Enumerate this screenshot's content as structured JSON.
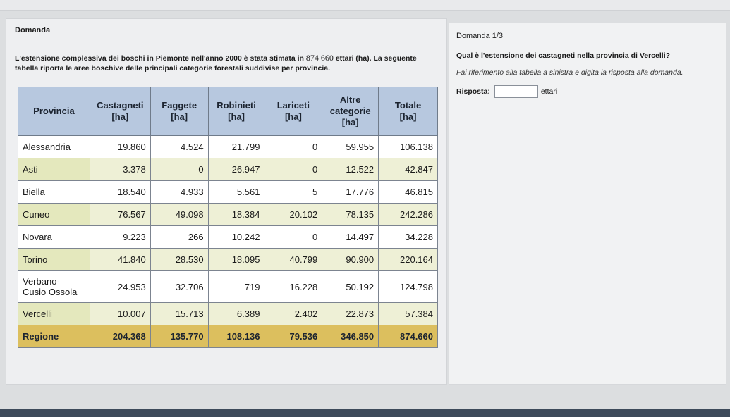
{
  "left": {
    "title": "Domanda",
    "intro_a": "L'estensione complessiva dei boschi in Piemonte nell'anno 2000 è stata stimata in",
    "intro_num": "874 660",
    "intro_b": "ettari (ha). La seguente tabella riporta le aree boschive delle principali categorie forestali suddivise per provincia.",
    "table": {
      "headers": {
        "provincia": "Provincia",
        "castagneti": "Castagneti",
        "faggete": "Faggete",
        "robinieti": "Robinieti",
        "lariceti": "Lariceti",
        "altre_1": "Altre",
        "altre_2": "categorie",
        "totale": "Totale",
        "unit": "[ha]"
      },
      "rows": [
        {
          "provincia": "Alessandria",
          "castagneti": "19.860",
          "faggete": "4.524",
          "robinieti": "21.799",
          "lariceti": "0",
          "altre": "59.955",
          "totale": "106.138"
        },
        {
          "provincia": "Asti",
          "castagneti": "3.378",
          "faggete": "0",
          "robinieti": "26.947",
          "lariceti": "0",
          "altre": "12.522",
          "totale": "42.847"
        },
        {
          "provincia": "Biella",
          "castagneti": "18.540",
          "faggete": "4.933",
          "robinieti": "5.561",
          "lariceti": "5",
          "altre": "17.776",
          "totale": "46.815"
        },
        {
          "provincia": "Cuneo",
          "castagneti": "76.567",
          "faggete": "49.098",
          "robinieti": "18.384",
          "lariceti": "20.102",
          "altre": "78.135",
          "totale": "242.286"
        },
        {
          "provincia": "Novara",
          "castagneti": "9.223",
          "faggete": "266",
          "robinieti": "10.242",
          "lariceti": "0",
          "altre": "14.497",
          "totale": "34.228"
        },
        {
          "provincia": "Torino",
          "castagneti": "41.840",
          "faggete": "28.530",
          "robinieti": "18.095",
          "lariceti": "40.799",
          "altre": "90.900",
          "totale": "220.164"
        },
        {
          "provincia_1": "Verbano-",
          "provincia_2": "Cusio Ossola",
          "castagneti": "24.953",
          "faggete": "32.706",
          "robinieti": "719",
          "lariceti": "16.228",
          "altre": "50.192",
          "totale": "124.798"
        },
        {
          "provincia": "Vercelli",
          "castagneti": "10.007",
          "faggete": "15.713",
          "robinieti": "6.389",
          "lariceti": "2.402",
          "altre": "22.873",
          "totale": "57.384"
        }
      ],
      "total": {
        "provincia": "Regione",
        "castagneti": "204.368",
        "faggete": "135.770",
        "robinieti": "108.136",
        "lariceti": "79.536",
        "altre": "346.850",
        "totale": "874.660"
      }
    }
  },
  "right": {
    "counter": "Domanda 1/3",
    "question": "Qual è l'estensione dei castagneti nella provincia di Vercelli?",
    "hint": "Fai riferimento alla tabella a sinistra e digita la risposta alla domanda.",
    "answer_label": "Risposta:",
    "answer_value": "",
    "answer_unit": "ettari"
  }
}
